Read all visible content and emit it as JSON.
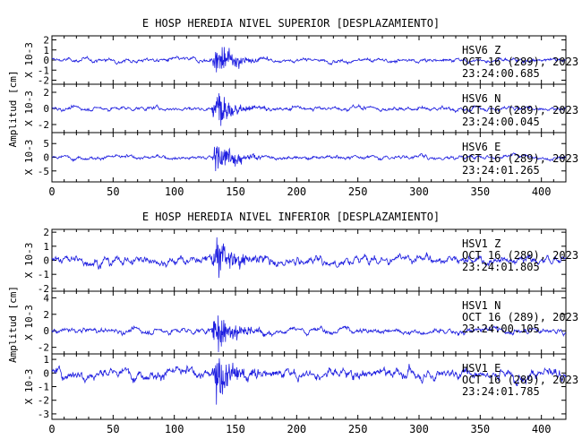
{
  "panels": [
    {
      "title": "E HOSP HEREDIA NIVEL SUPERIOR [DESPLAZAMIENTO]",
      "ylabel": "Amplitud [cm]",
      "traces": [
        {
          "station": "HSV6",
          "component": "Z",
          "date": "OCT 16 (289), 2023",
          "time": "23:24:00.685",
          "multiplier": "X 10-3",
          "yticks": [
            -2,
            -1,
            0,
            1,
            2
          ],
          "ylim": [
            -2.4,
            2.4
          ]
        },
        {
          "station": "HSV6",
          "component": "N",
          "date": "OCT 16 (289), 2023",
          "time": "23:24:00.045",
          "multiplier": "X 10-3",
          "yticks": [
            -2,
            0,
            2
          ],
          "ylim": [
            -3,
            3
          ]
        },
        {
          "station": "HSV6",
          "component": "E",
          "date": "OCT 16 (289), 2023",
          "time": "23:24:01.265",
          "multiplier": "X 10-3",
          "yticks": [
            -5,
            0,
            5
          ],
          "ylim": [
            -9,
            9
          ]
        }
      ]
    },
    {
      "title": "E HOSP HEREDIA NIVEL INFERIOR [DESPLAZAMIENTO]",
      "ylabel": "Amplitud [cm]",
      "traces": [
        {
          "station": "HSV1",
          "component": "Z",
          "date": "OCT 16 (289), 2023",
          "time": "23:24:01.805",
          "multiplier": "X 10-3",
          "yticks": [
            -2,
            -1,
            0,
            1,
            2
          ],
          "ylim": [
            -2.2,
            2.2
          ]
        },
        {
          "station": "HSV1",
          "component": "N",
          "date": "OCT 16 (289), 2023",
          "time": "23:24:00.105",
          "multiplier": "X 10-3",
          "yticks": [
            -2,
            0,
            2,
            4
          ],
          "ylim": [
            -2.8,
            4.8
          ]
        },
        {
          "station": "HSV1",
          "component": "E",
          "date": "OCT 16 (289), 2023",
          "time": "23:24:01.785",
          "multiplier": "X 10-3",
          "yticks": [
            -3,
            -2,
            -1,
            0,
            1
          ],
          "ylim": [
            -3.4,
            1.4
          ]
        }
      ]
    }
  ],
  "chart_data": {
    "type": "line",
    "title": "",
    "xlabel": "",
    "xlim": [
      0,
      420
    ],
    "xticks": [
      0,
      50,
      100,
      150,
      200,
      250,
      300,
      350,
      400
    ],
    "grid": false,
    "line_color": "#1f1fe0",
    "event": {
      "onset_s": 130,
      "peak_s": 135,
      "decay_end_s": 200
    },
    "series": [
      {
        "name": "HSV6 Z",
        "noise_amp": 0.3,
        "peak_amp": 2.2
      },
      {
        "name": "HSV6 N",
        "noise_amp": 0.35,
        "peak_amp": 3.0
      },
      {
        "name": "HSV6 E",
        "noise_amp": 1.0,
        "peak_amp": 8.5
      },
      {
        "name": "HSV1 Z",
        "noise_amp": 0.45,
        "peak_amp": 2.1
      },
      {
        "name": "HSV1 N",
        "noise_amp": 0.5,
        "peak_amp": 4.0
      },
      {
        "name": "HSV1 E",
        "noise_amp": 0.55,
        "peak_amp": 2.4
      }
    ]
  }
}
